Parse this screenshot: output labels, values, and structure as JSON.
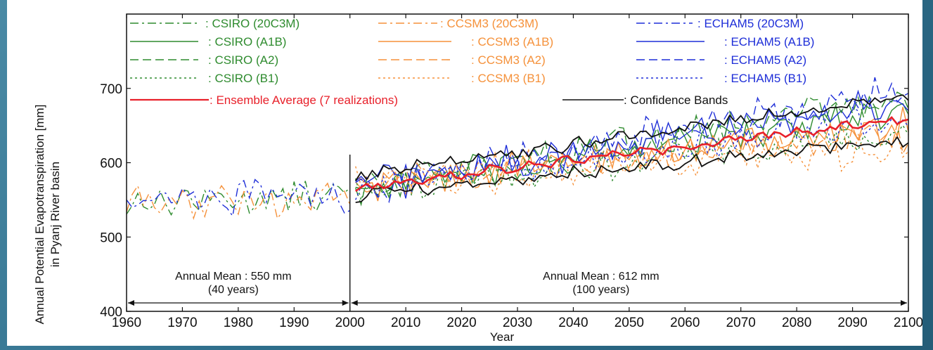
{
  "colors": {
    "csiro": "#2e8b2e",
    "ccsm3": "#f5913a",
    "echam5": "#1f2fd8",
    "ensemble": "#e8202a",
    "confidence": "#111111"
  },
  "chart_data": {
    "type": "line",
    "xlabel": "Year",
    "ylabel": [
      "Annual Potential Evapotranspiration [mm]",
      "in Pyanj River basin"
    ],
    "xlim": [
      1960,
      2100
    ],
    "ylim": [
      400,
      800
    ],
    "xticks": [
      1960,
      1970,
      1980,
      1990,
      2000,
      2010,
      2020,
      2030,
      2040,
      2050,
      2060,
      2070,
      2080,
      2090,
      2100
    ],
    "yticks": [
      400,
      500,
      600,
      700
    ],
    "grid": false,
    "legend_placement": "top",
    "legend": [
      [
        {
          "label": ": CSIRO (20C3M)",
          "model": "csiro",
          "dash": "dashdot"
        },
        {
          "label": ": CCSM3 (20C3M)",
          "model": "ccsm3",
          "dash": "dashdot"
        },
        {
          "label": ": ECHAM5 (20C3M)",
          "model": "echam5",
          "dash": "dashdot"
        }
      ],
      [
        {
          "label": ": CSIRO (A1B)",
          "model": "csiro",
          "dash": "solid"
        },
        {
          "label": ": CCSM3 (A1B)",
          "model": "ccsm3",
          "dash": "solid"
        },
        {
          "label": ": ECHAM5 (A1B)",
          "model": "echam5",
          "dash": "solid"
        }
      ],
      [
        {
          "label": ": CSIRO (A2)",
          "model": "csiro",
          "dash": "dashed"
        },
        {
          "label": ": CCSM3 (A2)",
          "model": "ccsm3",
          "dash": "dashed"
        },
        {
          "label": ": ECHAM5 (A2)",
          "model": "echam5",
          "dash": "dashed"
        }
      ],
      [
        {
          "label": ": CSIRO (B1)",
          "model": "csiro",
          "dash": "dotted"
        },
        {
          "label": ": CCSM3 (B1)",
          "model": "ccsm3",
          "dash": "dotted"
        },
        {
          "label": ": ECHAM5 (B1)",
          "model": "echam5",
          "dash": "dotted"
        }
      ],
      [
        {
          "label": ": Ensemble Average (7 realizations)",
          "model": "ensemble",
          "dash": "solid"
        },
        {
          "label": ": Confidence Bands",
          "model": "confidence",
          "dash": "solid"
        }
      ]
    ],
    "annotations": [
      {
        "line1": "Annual Mean : 550 mm",
        "line2": "(40 years)",
        "from": 1960,
        "to": 2000
      },
      {
        "line1": "Annual Mean : 612 mm",
        "line2": "(100 years)",
        "from": 2000,
        "to": 2100
      }
    ],
    "series": [
      {
        "name": "CSIRO (20C3M)",
        "model": "csiro",
        "dash": "dashdot",
        "x_range": [
          1960,
          2000
        ],
        "start": 548,
        "end": 555
      },
      {
        "name": "CCSM3 (20C3M)",
        "model": "ccsm3",
        "dash": "dashdot",
        "x_range": [
          1960,
          2000
        ],
        "start": 545,
        "end": 552
      },
      {
        "name": "ECHAM5 (20C3M)",
        "model": "echam5",
        "dash": "dashdot",
        "x_range": [
          1960,
          2000
        ],
        "start": 552,
        "end": 558
      },
      {
        "name": "CSIRO (A1B)",
        "model": "csiro",
        "dash": "solid",
        "x_range": [
          2001,
          2100
        ],
        "start": 565,
        "end": 670
      },
      {
        "name": "CCSM3 (A1B)",
        "model": "ccsm3",
        "dash": "solid",
        "x_range": [
          2001,
          2100
        ],
        "start": 570,
        "end": 650
      },
      {
        "name": "ECHAM5 (A1B)",
        "model": "echam5",
        "dash": "solid",
        "x_range": [
          2001,
          2100
        ],
        "start": 568,
        "end": 685
      },
      {
        "name": "CSIRO (A2)",
        "model": "csiro",
        "dash": "dashed",
        "x_range": [
          2001,
          2100
        ],
        "start": 563,
        "end": 690
      },
      {
        "name": "CCSM3 (A2)",
        "model": "ccsm3",
        "dash": "dashed",
        "x_range": [
          2001,
          2100
        ],
        "start": 572,
        "end": 640
      },
      {
        "name": "ECHAM5 (A2)",
        "model": "echam5",
        "dash": "dashed",
        "x_range": [
          2001,
          2100
        ],
        "start": 566,
        "end": 700
      },
      {
        "name": "CSIRO (B1)",
        "model": "csiro",
        "dash": "dotted",
        "x_range": [
          2001,
          2100
        ],
        "start": 562,
        "end": 640
      },
      {
        "name": "CCSM3 (B1)",
        "model": "ccsm3",
        "dash": "dotted",
        "x_range": [
          2001,
          2100
        ],
        "start": 571,
        "end": 620
      },
      {
        "name": "ECHAM5 (B1)",
        "model": "echam5",
        "dash": "dotted",
        "x_range": [
          2001,
          2100
        ],
        "start": 565,
        "end": 660
      },
      {
        "name": "Ensemble Average (7 realizations)",
        "model": "ensemble",
        "dash": "solid",
        "x_range": [
          2001,
          2100
        ],
        "start": 567,
        "end": 660,
        "noise": 6
      },
      {
        "name": "Confidence Bands (upper)",
        "model": "confidence",
        "dash": "solid",
        "x_range": [
          2001,
          2100
        ],
        "start": 583,
        "end": 690,
        "noise": 8
      },
      {
        "name": "Confidence Bands (lower)",
        "model": "confidence",
        "dash": "solid",
        "x_range": [
          2001,
          2100
        ],
        "start": 555,
        "end": 632,
        "noise": 8
      }
    ]
  }
}
